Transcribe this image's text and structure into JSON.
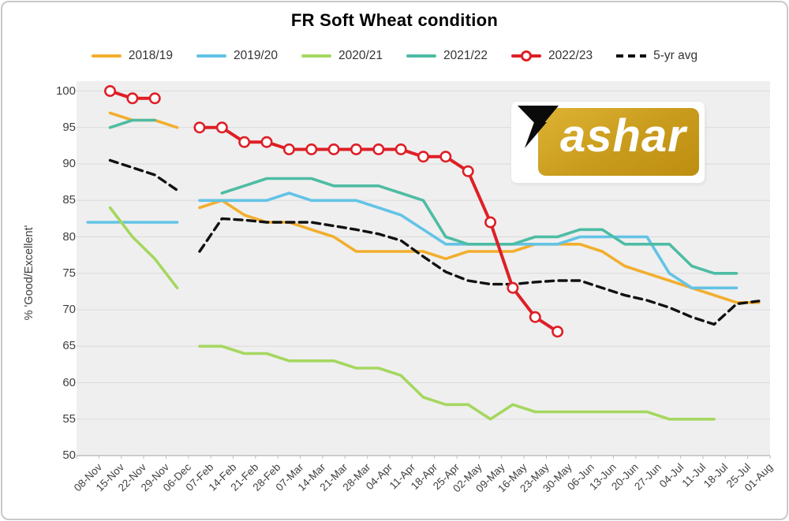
{
  "title": "FR Soft Wheat condition",
  "logo": {
    "brand": "Yashar",
    "text_after_mark": "ashar"
  },
  "axes": {
    "y_title": "% 'Good/Excellent'",
    "y_ticks": [
      50,
      55,
      60,
      65,
      70,
      75,
      80,
      85,
      90,
      95,
      100
    ]
  },
  "colors": {
    "plot_bg": "#efefef",
    "gridline": "#dbdbdb",
    "axis_line": "#bdbdbd",
    "label": "#3f3f3f",
    "title": "#000000",
    "logo_gold": "#c99b1d"
  },
  "chart_data": {
    "type": "line",
    "title": "FR Soft Wheat condition",
    "xlabel": "",
    "ylabel": "% 'Good/Excellent'",
    "ylim": [
      50,
      100
    ],
    "grid": true,
    "legend_position": "top",
    "x_labels_rotation": -45,
    "gap_after_index": 4,
    "categories": [
      "08-Nov",
      "15-Nov",
      "22-Nov",
      "29-Nov",
      "06-Dec",
      "07-Feb",
      "14-Feb",
      "21-Feb",
      "28-Feb",
      "07-Mar",
      "14-Mar",
      "21-Mar",
      "28-Mar",
      "04-Apr",
      "11-Apr",
      "18-Apr",
      "25-Apr",
      "02-May",
      "09-May",
      "16-May",
      "23-May",
      "30-May",
      "06-Jun",
      "13-Jun",
      "20-Jun",
      "27-Jun",
      "04-Jul",
      "11-Jul",
      "18-Jul",
      "25-Jul",
      "01-Aug"
    ],
    "series": [
      {
        "name": "2018/19",
        "color": "#f2ae2e",
        "style": "solid",
        "values": [
          null,
          97,
          96,
          96,
          95,
          84,
          85,
          83,
          82,
          82,
          81,
          80,
          78,
          78,
          78,
          78,
          77,
          78,
          78,
          78,
          79,
          79,
          79,
          78,
          76,
          75,
          74,
          73,
          72,
          71,
          71
        ]
      },
      {
        "name": "2019/20",
        "color": "#63c3e6",
        "style": "solid",
        "values": [
          82,
          82,
          82,
          82,
          82,
          85,
          85,
          85,
          85,
          86,
          85,
          85,
          85,
          84,
          83,
          81,
          79,
          79,
          79,
          79,
          79,
          79,
          80,
          80,
          80,
          80,
          75,
          73,
          73,
          73,
          null
        ]
      },
      {
        "name": "2020/21",
        "color": "#a5d75f",
        "style": "solid",
        "values": [
          null,
          84,
          80,
          77,
          73,
          65,
          65,
          64,
          64,
          63,
          63,
          63,
          62,
          62,
          61,
          58,
          57,
          57,
          55,
          57,
          56,
          56,
          56,
          56,
          56,
          56,
          55,
          55,
          55,
          null,
          null
        ]
      },
      {
        "name": "2021/22",
        "color": "#4ebca4",
        "style": "solid",
        "values": [
          null,
          95,
          96,
          96,
          null,
          null,
          86,
          87,
          88,
          88,
          88,
          87,
          87,
          87,
          86,
          85,
          80,
          79,
          79,
          79,
          80,
          80,
          81,
          81,
          79,
          79,
          79,
          76,
          75,
          75,
          null
        ]
      },
      {
        "name": "2022/23",
        "color": "#de1f26",
        "style": "solid",
        "marker": "circle-open",
        "values": [
          null,
          100,
          99,
          99,
          null,
          95,
          95,
          93,
          93,
          92,
          92,
          92,
          92,
          92,
          92,
          91,
          91,
          89,
          82,
          73,
          69,
          67,
          null,
          null,
          null,
          null,
          null,
          null,
          null,
          null,
          null
        ]
      },
      {
        "name": "5-yr avg",
        "color": "#111111",
        "style": "dashed",
        "values": [
          null,
          90.5,
          89.5,
          88.5,
          86.4,
          78,
          82.5,
          82.3,
          82,
          82,
          82,
          81.5,
          81,
          80.4,
          79.5,
          77.3,
          75.2,
          74,
          73.5,
          73.5,
          73.8,
          74,
          74,
          73,
          72,
          71.3,
          70.3,
          69,
          68,
          70.8,
          71.2
        ]
      }
    ]
  }
}
